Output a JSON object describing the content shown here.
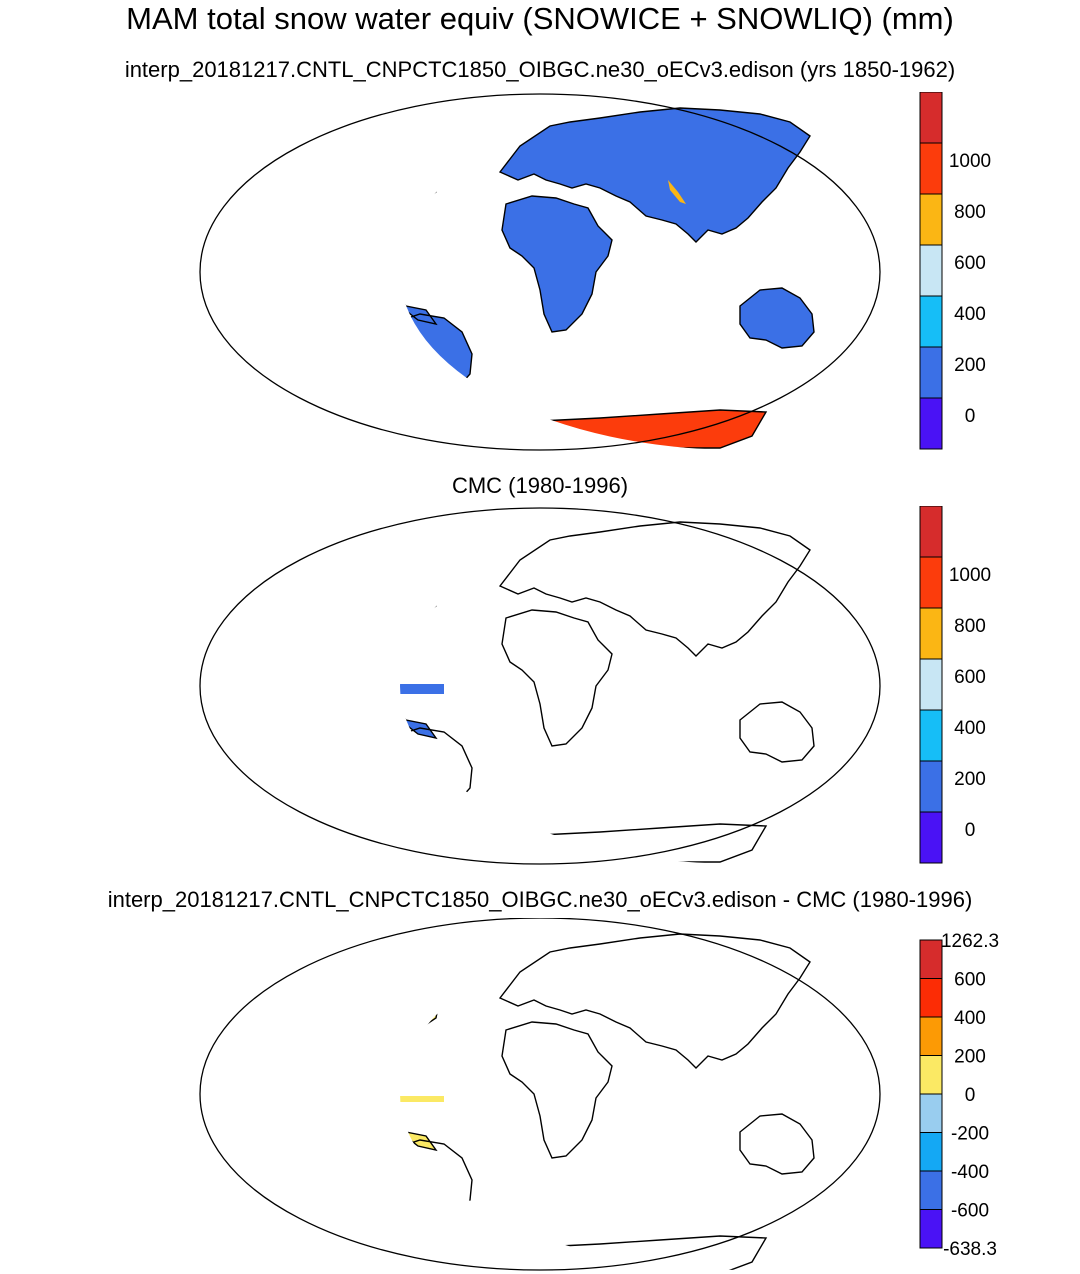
{
  "figure": {
    "title": "MAM total snow water equiv (SNOWICE + SNOWLIQ) (mm)"
  },
  "panels": [
    {
      "subtitle": "interp_20181217.CNTL_CNPCTC1850_OIBGC.ne30_oECv3.edison (yrs 1850-1962)",
      "colorbar": {
        "colors": [
          "#4a12f5",
          "#3b70e6",
          "#16bef7",
          "#c8e6f4",
          "#fbb614",
          "#fc3c0c",
          "#d62c2c"
        ],
        "labels": [
          "0",
          "200",
          "400",
          "600",
          "800",
          "1000"
        ]
      }
    },
    {
      "subtitle": "CMC (1980-1996)",
      "colorbar": {
        "colors": [
          "#4a12f5",
          "#3b70e6",
          "#16bef7",
          "#c8e6f4",
          "#fbb614",
          "#fc3c0c",
          "#d62c2c"
        ],
        "labels": [
          "0",
          "200",
          "400",
          "600",
          "800",
          "1000"
        ]
      }
    },
    {
      "subtitle": "interp_20181217.CNTL_CNPCTC1850_OIBGC.ne30_oECv3.edison - CMC (1980-1996)",
      "colorbar": {
        "colors": [
          "#4a12f5",
          "#3b70e6",
          "#14a8f4",
          "#99cdef",
          "#fbe964",
          "#fc9a05",
          "#fc2c05",
          "#d62c2c"
        ],
        "labels": [
          "-638.3",
          "-600",
          "-400",
          "-200",
          "0",
          "200",
          "400",
          "600",
          "1262.3"
        ]
      }
    }
  ]
}
